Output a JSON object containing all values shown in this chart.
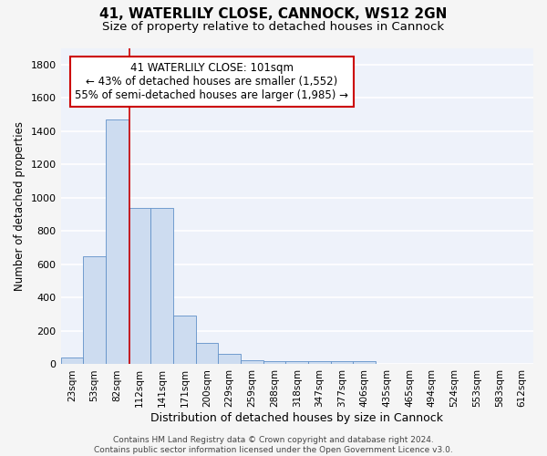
{
  "title1": "41, WATERLILY CLOSE, CANNOCK, WS12 2GN",
  "title2": "Size of property relative to detached houses in Cannock",
  "xlabel": "Distribution of detached houses by size in Cannock",
  "ylabel": "Number of detached properties",
  "bar_labels": [
    "23sqm",
    "53sqm",
    "82sqm",
    "112sqm",
    "141sqm",
    "171sqm",
    "200sqm",
    "229sqm",
    "259sqm",
    "288sqm",
    "318sqm",
    "347sqm",
    "377sqm",
    "406sqm",
    "435sqm",
    "465sqm",
    "494sqm",
    "524sqm",
    "553sqm",
    "583sqm",
    "612sqm"
  ],
  "bar_values": [
    40,
    650,
    1470,
    940,
    940,
    295,
    130,
    65,
    25,
    20,
    20,
    20,
    20,
    20,
    0,
    0,
    0,
    0,
    0,
    0,
    0
  ],
  "bar_color": "#cddcf0",
  "bar_edge_color": "#6090c8",
  "annotation_line1": "41 WATERLILY CLOSE: 101sqm",
  "annotation_line2": "← 43% of detached houses are smaller (1,552)",
  "annotation_line3": "55% of semi-detached houses are larger (1,985) →",
  "annotation_box_color": "#ffffff",
  "annotation_box_edge_color": "#cc0000",
  "red_line_x": 2.55,
  "ylim": [
    0,
    1900
  ],
  "yticks": [
    0,
    200,
    400,
    600,
    800,
    1000,
    1200,
    1400,
    1600,
    1800
  ],
  "bg_color": "#eef2fa",
  "grid_color": "#ffffff",
  "footer_text": "Contains HM Land Registry data © Crown copyright and database right 2024.\nContains public sector information licensed under the Open Government Licence v3.0.",
  "title1_fontsize": 11,
  "title2_fontsize": 9.5,
  "xlabel_fontsize": 9,
  "ylabel_fontsize": 8.5,
  "tick_fontsize": 7.5,
  "annotation_fontsize": 8.5,
  "footer_fontsize": 6.5
}
